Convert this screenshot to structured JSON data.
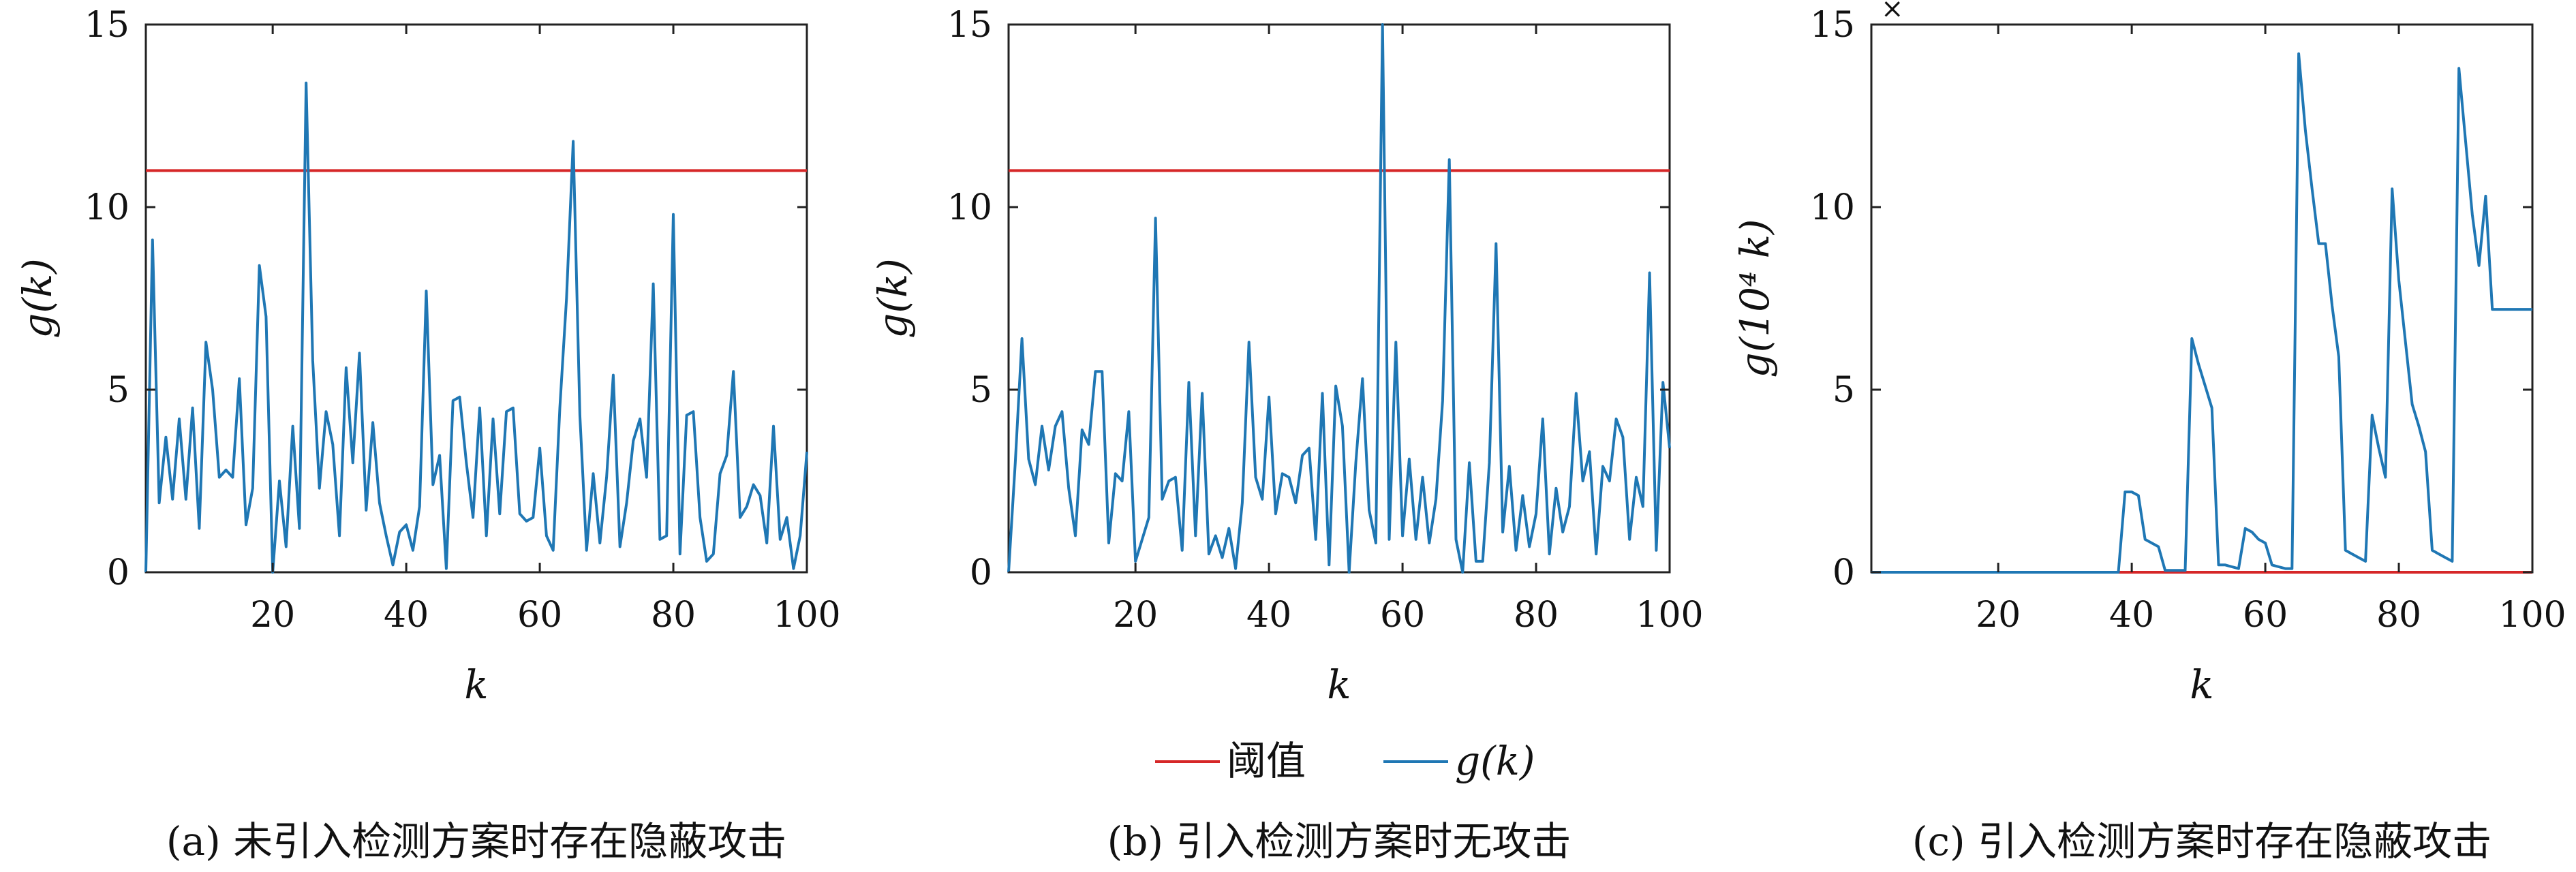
{
  "chart_data": [
    {
      "type": "line",
      "caption": "(a) 未引入检测方案时存在隐蔽攻击",
      "xlabel": "k",
      "ylabel": "g(k)",
      "xlim": [
        1,
        100
      ],
      "ylim": [
        0,
        15
      ],
      "xticks": [
        20,
        40,
        60,
        80,
        100
      ],
      "yticks": [
        0,
        5,
        10,
        15
      ],
      "threshold": 11,
      "x": [
        1,
        2,
        3,
        4,
        5,
        6,
        7,
        8,
        9,
        10,
        11,
        12,
        13,
        14,
        15,
        16,
        17,
        18,
        19,
        20,
        21,
        22,
        23,
        24,
        25,
        26,
        27,
        28,
        29,
        30,
        31,
        32,
        33,
        34,
        35,
        36,
        37,
        38,
        39,
        40,
        41,
        42,
        43,
        44,
        45,
        46,
        47,
        48,
        49,
        50,
        51,
        52,
        53,
        54,
        55,
        56,
        57,
        58,
        59,
        60,
        61,
        62,
        63,
        64,
        65,
        66,
        67,
        68,
        69,
        70,
        71,
        72,
        73,
        74,
        75,
        76,
        77,
        78,
        79,
        80,
        81,
        82,
        83,
        84,
        85,
        86,
        87,
        88,
        89,
        90,
        91,
        92,
        93,
        94,
        95,
        96,
        97,
        98,
        99,
        100
      ],
      "values": [
        0,
        9.1,
        1.9,
        3.7,
        2.0,
        4.2,
        2.0,
        4.5,
        1.2,
        6.3,
        5.0,
        2.6,
        2.8,
        2.6,
        5.3,
        1.3,
        2.3,
        8.4,
        7.0,
        0,
        2.5,
        0.7,
        4.0,
        1.2,
        13.4,
        5.8,
        2.3,
        4.4,
        3.5,
        1.0,
        5.6,
        3.0,
        6.0,
        1.7,
        4.1,
        1.9,
        1.0,
        0.2,
        1.1,
        1.3,
        0.6,
        1.8,
        7.7,
        2.4,
        3.2,
        0.1,
        4.7,
        4.8,
        3.0,
        1.5,
        4.5,
        1.0,
        4.2,
        1.6,
        4.4,
        4.5,
        1.6,
        1.4,
        1.5,
        3.4,
        1.0,
        0.6,
        4.5,
        7.5,
        11.8,
        4.3,
        0.6,
        2.7,
        0.8,
        2.6,
        5.4,
        0.7,
        1.9,
        3.6,
        4.2,
        2.6,
        7.9,
        0.9,
        1.0,
        9.8,
        0.5,
        4.3,
        4.4,
        1.5,
        0.3,
        0.5,
        2.7,
        3.2,
        5.5,
        1.5,
        1.8,
        2.4,
        2.1,
        0.8,
        4.0,
        0.9,
        1.5,
        0.1,
        1.0,
        3.3
      ]
    },
    {
      "type": "line",
      "caption": "(b) 引入检测方案时无攻击",
      "xlabel": "k",
      "ylabel": "g(k)",
      "xlim": [
        1,
        100
      ],
      "ylim": [
        0,
        15
      ],
      "xticks": [
        20,
        40,
        60,
        80,
        100
      ],
      "yticks": [
        0,
        5,
        10,
        15
      ],
      "threshold": 11,
      "x": [
        1,
        2,
        3,
        4,
        5,
        6,
        7,
        8,
        9,
        10,
        11,
        12,
        13,
        14,
        15,
        16,
        17,
        18,
        19,
        20,
        21,
        22,
        23,
        24,
        25,
        26,
        27,
        28,
        29,
        30,
        31,
        32,
        33,
        34,
        35,
        36,
        37,
        38,
        39,
        40,
        41,
        42,
        43,
        44,
        45,
        46,
        47,
        48,
        49,
        50,
        51,
        52,
        53,
        54,
        55,
        56,
        57,
        58,
        59,
        60,
        61,
        62,
        63,
        64,
        65,
        66,
        67,
        68,
        69,
        70,
        71,
        72,
        73,
        74,
        75,
        76,
        77,
        78,
        79,
        80,
        81,
        82,
        83,
        84,
        85,
        86,
        87,
        88,
        89,
        90,
        91,
        92,
        93,
        94,
        95,
        96,
        97,
        98,
        99,
        100
      ],
      "values": [
        0,
        3.0,
        6.4,
        3.1,
        2.4,
        4.0,
        2.8,
        4.0,
        4.4,
        2.3,
        1.0,
        3.9,
        3.5,
        5.5,
        5.5,
        0.8,
        2.7,
        2.5,
        4.4,
        0.3,
        0.9,
        1.5,
        9.7,
        2.0,
        2.5,
        2.6,
        0.6,
        5.2,
        1.0,
        4.9,
        0.5,
        1.0,
        0.4,
        1.2,
        0.1,
        1.9,
        6.3,
        2.6,
        2.0,
        4.8,
        1.6,
        2.7,
        2.6,
        1.9,
        3.2,
        3.4,
        0.9,
        4.9,
        0.2,
        5.1,
        4.0,
        0,
        3.0,
        5.3,
        1.7,
        0.8,
        15.0,
        0.9,
        6.3,
        1.0,
        3.1,
        0.9,
        2.6,
        0.8,
        2.0,
        4.7,
        11.3,
        0.9,
        0,
        3.0,
        0.3,
        0.3,
        3.0,
        9.0,
        1.1,
        2.9,
        0.6,
        2.1,
        0.7,
        1.6,
        4.2,
        0.5,
        2.3,
        1.1,
        1.8,
        4.9,
        2.5,
        3.3,
        0.5,
        2.9,
        2.5,
        4.2,
        3.7,
        0.9,
        2.6,
        1.8,
        8.2,
        0.6,
        5.2,
        3.4
      ],
      "values_note_end": ""
    },
    {
      "type": "line",
      "caption": "(c) 引入检测方案时存在隐蔽攻击",
      "xlabel": "k",
      "ylabel": "g(10⁴ k)",
      "xlim": [
        1,
        100
      ],
      "ylim": [
        0,
        15
      ],
      "xticks": [
        20,
        40,
        60,
        80,
        100
      ],
      "yticks": [
        0,
        5,
        10,
        15
      ],
      "threshold": 0,
      "x": [
        1,
        36,
        37,
        38,
        39,
        40,
        41,
        42,
        43,
        44,
        45,
        46,
        47,
        48,
        49,
        50,
        51,
        52,
        53,
        54,
        55,
        56,
        57,
        58,
        59,
        60,
        61,
        62,
        63,
        64,
        65,
        66,
        67,
        68,
        69,
        70,
        71,
        72,
        73,
        74,
        75,
        76,
        77,
        78,
        79,
        80,
        81,
        82,
        83,
        84,
        85,
        86,
        87,
        88,
        89,
        90,
        91,
        92,
        93,
        94,
        95,
        96,
        97,
        98,
        99,
        100
      ],
      "values": [
        0,
        0,
        0,
        0,
        2.2,
        2.2,
        2.1,
        0.9,
        0.8,
        0.7,
        0.05,
        0.05,
        0.05,
        0.05,
        6.4,
        5.7,
        5.1,
        4.5,
        0.2,
        0.2,
        0.15,
        0.1,
        1.2,
        1.1,
        0.9,
        0.8,
        0.2,
        0.15,
        0.1,
        0.1,
        14.2,
        12.1,
        10.5,
        9.0,
        9.0,
        7.3,
        5.9,
        0.6,
        0.5,
        0.4,
        0.3,
        4.3,
        3.4,
        2.6,
        10.5,
        8.0,
        6.3,
        4.6,
        4.0,
        3.3,
        0.6,
        0.5,
        0.4,
        0.3,
        13.8,
        11.8,
        9.8,
        8.4,
        10.3,
        7.2,
        7.2,
        7.2,
        7.2,
        7.2,
        7.2,
        7.2
      ],
      "exponent_label": "×"
    }
  ],
  "legend": {
    "items": [
      {
        "label": "阈值",
        "color": "#d62728"
      },
      {
        "label": "g(k)",
        "color": "#1f77b4"
      }
    ]
  },
  "colors": {
    "series": "#1f77b4",
    "threshold": "#d62728"
  }
}
